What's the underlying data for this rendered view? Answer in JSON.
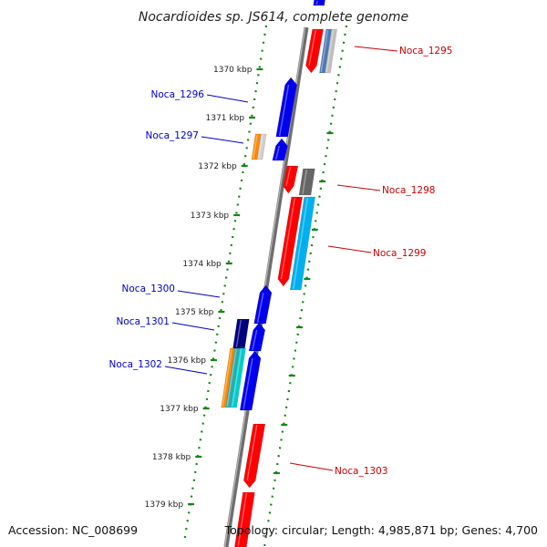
{
  "title": "Nocardioides sp. JS614, complete genome",
  "footer": {
    "accession": "Accession: NC_008699",
    "topology": "Topology: circular; Length: 4,985,871 bp; Genes: 4,700"
  },
  "colors": {
    "forward_label": "#0000cc",
    "reverse_label": "#cc0000",
    "backbone": "#8a8a8a",
    "dots": "#118811"
  },
  "ticks": [
    "1370 kbp",
    "1371 kbp",
    "1372 kbp",
    "1373 kbp",
    "1374 kbp",
    "1375 kbp",
    "1376 kbp",
    "1377 kbp",
    "1378 kbp",
    "1379 kbp"
  ],
  "genes": [
    {
      "name": "Noca_1295",
      "strand": "reverse"
    },
    {
      "name": "Noca_1296",
      "strand": "forward"
    },
    {
      "name": "Noca_1297",
      "strand": "forward"
    },
    {
      "name": "Noca_1298",
      "strand": "reverse"
    },
    {
      "name": "Noca_1299",
      "strand": "reverse"
    },
    {
      "name": "Noca_1300",
      "strand": "forward"
    },
    {
      "name": "Noca_1301",
      "strand": "forward"
    },
    {
      "name": "Noca_1302",
      "strand": "forward"
    },
    {
      "name": "Noca_1303",
      "strand": "reverse"
    }
  ]
}
